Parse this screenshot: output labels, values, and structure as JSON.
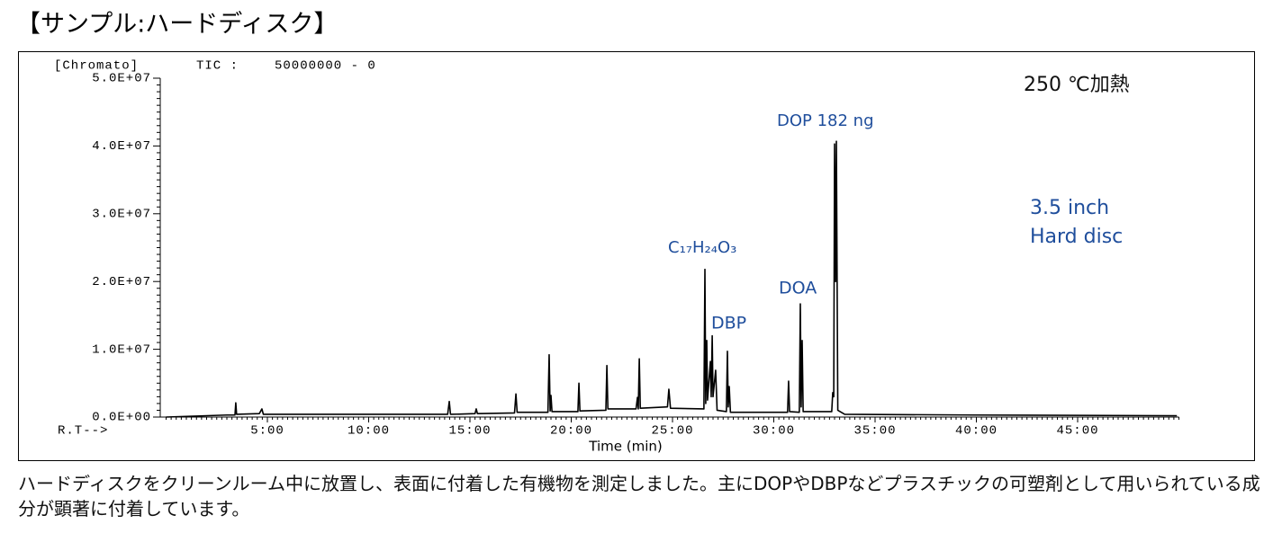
{
  "title": "【サンプル:ハードディスク】",
  "description": "ハードディスクをクリーンルーム中に放置し、表面に付着した有機物を測定しました。主にDOPやDBPなどプラスチックの可塑剤として用いられている成分が顕著に付着しています。",
  "chart_data": {
    "type": "line",
    "header": [
      "[Chromato]",
      "TIC :",
      "50000000 - 0"
    ],
    "x_axis_prefix": "R.T-->",
    "xlabel": "Time (min)",
    "color": "#000000",
    "xlim": [
      0,
      50
    ],
    "ylim": [
      0,
      50000000
    ],
    "xticks": [
      {
        "value": 5,
        "label": "5:00"
      },
      {
        "value": 10,
        "label": "10:00"
      },
      {
        "value": 15,
        "label": "15:00"
      },
      {
        "value": 20,
        "label": "20:00"
      },
      {
        "value": 25,
        "label": "25:00"
      },
      {
        "value": 30,
        "label": "30:00"
      },
      {
        "value": 35,
        "label": "35:00"
      },
      {
        "value": 40,
        "label": "40:00"
      },
      {
        "value": 45,
        "label": "45:00"
      }
    ],
    "yticks": [
      {
        "value": 0,
        "label": "0.0E+00"
      },
      {
        "value": 10000000,
        "label": "1.0E+07"
      },
      {
        "value": 20000000,
        "label": "2.0E+07"
      },
      {
        "value": 30000000,
        "label": "3.0E+07"
      },
      {
        "value": 40000000,
        "label": "4.0E+07"
      },
      {
        "value": 50000000,
        "label": "5.0E+07"
      }
    ],
    "annotations": [
      "250 ℃加熱",
      "DOP 182 ng",
      "3.5 inch",
      "Hard disc",
      "C₁₇H₂₄O₃",
      "DBP",
      "DOA"
    ],
    "x": [
      0,
      3.0,
      3.4,
      3.44,
      3.48,
      4.6,
      4.73,
      4.8,
      13.9,
      13.98,
      14.04,
      15.25,
      15.31,
      15.37,
      17.2,
      17.27,
      17.33,
      18.85,
      18.91,
      18.96,
      19.0,
      19.05,
      20.33,
      20.38,
      20.43,
      21.71,
      21.76,
      21.81,
      23.2,
      23.27,
      23.31,
      23.36,
      23.41,
      24.75,
      24.82,
      24.9,
      26.55,
      26.6,
      26.64,
      26.69,
      26.73,
      26.87,
      26.91,
      26.96,
      27.0,
      27.13,
      27.2,
      27.66,
      27.71,
      27.75,
      27.8,
      27.86,
      30.68,
      30.73,
      30.78,
      31.26,
      31.31,
      31.35,
      31.4,
      31.45,
      32.86,
      32.91,
      32.96,
      33.0,
      33.05,
      33.09,
      33.16,
      33.5,
      40,
      49.9
    ],
    "values": [
      0,
      300000,
      300000,
      2100000,
      400000,
      500000,
      1200000,
      400000,
      400000,
      2300000,
      400000,
      500000,
      1200000,
      500000,
      600000,
      3400000,
      700000,
      700000,
      9200000,
      900000,
      3200000,
      800000,
      800000,
      5000000,
      900000,
      1000000,
      7600000,
      1200000,
      1200000,
      2900000,
      1200000,
      8600000,
      1300000,
      1500000,
      4100000,
      1300000,
      1200000,
      21800000,
      2000000,
      11300000,
      2500000,
      8200000,
      3000000,
      12000000,
      3000000,
      6900000,
      1000000,
      800000,
      9700000,
      1500000,
      4500000,
      700000,
      700000,
      5300000,
      800000,
      700000,
      16700000,
      1500000,
      11300000,
      800000,
      800000,
      3600000,
      3000000,
      40300000,
      20000000,
      40700000,
      1000000,
      400000,
      300000,
      200000
    ]
  }
}
